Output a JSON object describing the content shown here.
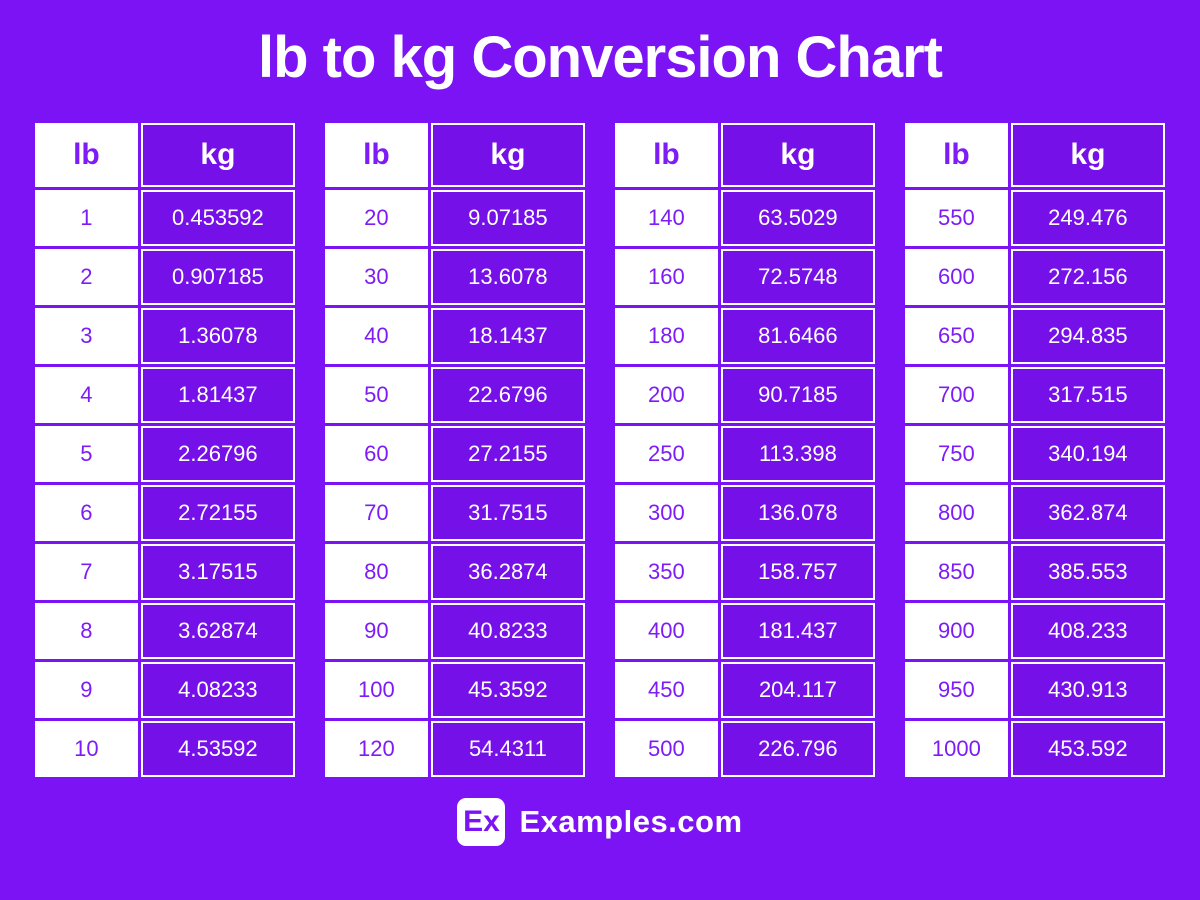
{
  "title": "lb to kg Conversion Chart",
  "colors": {
    "background": "#7B13F5",
    "kg_cell_fill": "#7511E8",
    "purple_text": "#7D1CF6",
    "white": "#FFFFFF"
  },
  "chart_data": {
    "type": "table",
    "title": "lb to kg Conversion Chart",
    "columns": [
      "lb",
      "kg"
    ],
    "tables": [
      {
        "rows": [
          [
            "1",
            "0.453592"
          ],
          [
            "2",
            "0.907185"
          ],
          [
            "3",
            "1.36078"
          ],
          [
            "4",
            "1.81437"
          ],
          [
            "5",
            "2.26796"
          ],
          [
            "6",
            "2.72155"
          ],
          [
            "7",
            "3.17515"
          ],
          [
            "8",
            "3.62874"
          ],
          [
            "9",
            "4.08233"
          ],
          [
            "10",
            "4.53592"
          ]
        ]
      },
      {
        "rows": [
          [
            "20",
            "9.07185"
          ],
          [
            "30",
            "13.6078"
          ],
          [
            "40",
            "18.1437"
          ],
          [
            "50",
            "22.6796"
          ],
          [
            "60",
            "27.2155"
          ],
          [
            "70",
            "31.7515"
          ],
          [
            "80",
            "36.2874"
          ],
          [
            "90",
            "40.8233"
          ],
          [
            "100",
            "45.3592"
          ],
          [
            "120",
            "54.4311"
          ]
        ]
      },
      {
        "rows": [
          [
            "140",
            "63.5029"
          ],
          [
            "160",
            "72.5748"
          ],
          [
            "180",
            "81.6466"
          ],
          [
            "200",
            "90.7185"
          ],
          [
            "250",
            "113.398"
          ],
          [
            "300",
            "136.078"
          ],
          [
            "350",
            "158.757"
          ],
          [
            "400",
            "181.437"
          ],
          [
            "450",
            "204.117"
          ],
          [
            "500",
            "226.796"
          ]
        ]
      },
      {
        "rows": [
          [
            "550",
            "249.476"
          ],
          [
            "600",
            "272.156"
          ],
          [
            "650",
            "294.835"
          ],
          [
            "700",
            "317.515"
          ],
          [
            "750",
            "340.194"
          ],
          [
            "800",
            "362.874"
          ],
          [
            "850",
            "385.553"
          ],
          [
            "900",
            "408.233"
          ],
          [
            "950",
            "430.913"
          ],
          [
            "1000",
            "453.592"
          ]
        ]
      }
    ]
  },
  "footer": {
    "logo_badge": "Ex",
    "brand": "Examples.com"
  }
}
